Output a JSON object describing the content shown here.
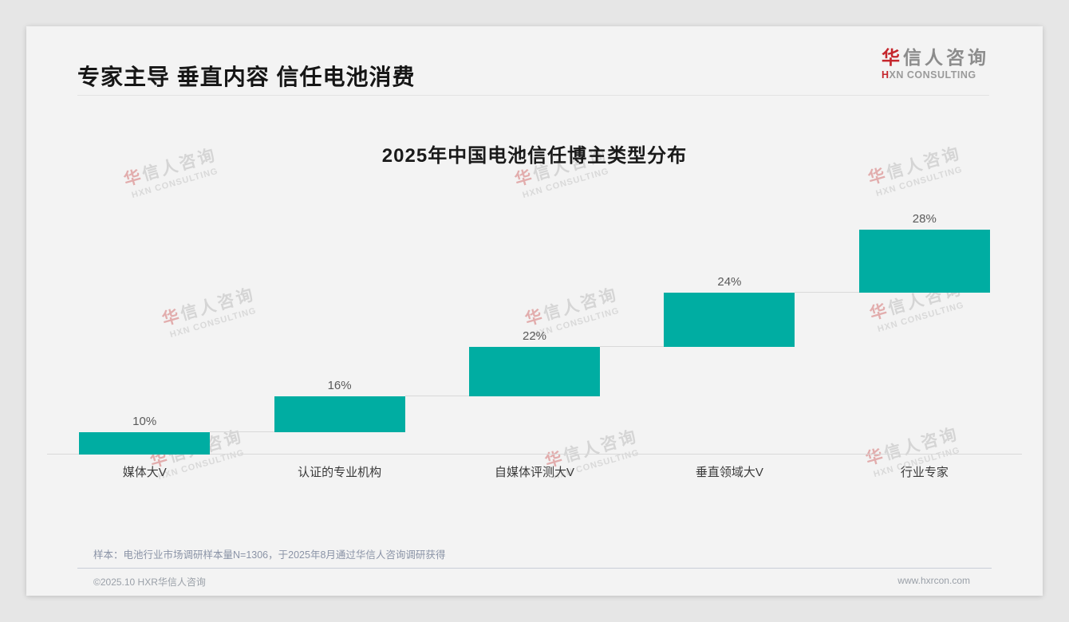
{
  "header": {
    "title": "专家主导 垂直内容 信任电池消费",
    "logo": {
      "cn_first": "华",
      "cn_rest": "信人咨询",
      "en_first": "H",
      "en_rest": "XN CONSULTING"
    }
  },
  "watermark": {
    "cn_first": "华",
    "cn_rest": "信人咨询",
    "en": "HXN CONSULTING"
  },
  "chart_data": {
    "type": "bar",
    "variant": "staircase-cumulative",
    "title": "2025年中国电池信任博主类型分布",
    "categories": [
      "媒体大V",
      "认证的专业机构",
      "自媒体评测大V",
      "垂直领域大V",
      "行业专家"
    ],
    "values": [
      10,
      16,
      22,
      24,
      28
    ],
    "labels": [
      "10%",
      "16%",
      "22%",
      "24%",
      "28%"
    ],
    "unit": "%",
    "total": 100,
    "bar_color": "#00ADA2",
    "line_color": "#d9d9d9",
    "value_label_color": "#595959",
    "layout_note": "each bar rises from the cumulative sum of previous bars; thin gray step lines connect bar tops to the next bar's base; single gray baseline axis, no y-axis ticks, no gridlines, no legend"
  },
  "footnote": "样本：电池行业市场调研样本量N=1306，于2025年8月通过华信人咨询调研获得",
  "footer": {
    "left": "©2025.10 HXR华信人咨询",
    "right": "www.hxrcon.com"
  }
}
